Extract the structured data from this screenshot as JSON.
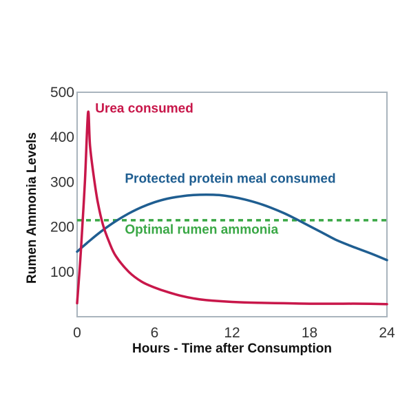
{
  "chart_data": {
    "type": "line",
    "title": "",
    "xlabel": "Hours - Time after Consumption",
    "ylabel": "Rumen Ammonia Levels",
    "xlim": [
      0,
      24
    ],
    "ylim": [
      0,
      500
    ],
    "x_ticks": [
      "0",
      "6",
      "12",
      "18",
      "24"
    ],
    "y_ticks": [
      "100",
      "200",
      "300",
      "400",
      "500"
    ],
    "grid": false,
    "legend": "inline labels",
    "series": [
      {
        "name": "Urea consumed",
        "color": "#c8174a",
        "x": [
          0,
          0.3,
          0.6,
          0.85,
          1.0,
          1.3,
          1.6,
          2.0,
          2.5,
          3.0,
          4.0,
          5.0,
          6.0,
          7.0,
          8.0,
          9.0,
          10.0,
          12.0,
          14.0,
          16.0,
          18.0,
          20.0,
          22.0,
          24.0
        ],
        "y": [
          30,
          150,
          300,
          455,
          380,
          310,
          255,
          205,
          165,
          135,
          100,
          78,
          65,
          55,
          47,
          41,
          37,
          33,
          31,
          30,
          29,
          29,
          29,
          28
        ]
      },
      {
        "name": "Protected protein meal consumed",
        "color": "#1f5e91",
        "x": [
          0,
          1,
          2,
          3,
          4,
          5,
          6,
          7,
          8,
          9,
          10,
          11,
          12,
          13,
          14,
          15,
          16,
          17,
          18,
          19,
          20,
          21,
          22,
          23,
          24
        ],
        "y": [
          145,
          170,
          193,
          213,
          230,
          244,
          255,
          263,
          268,
          271,
          272,
          271,
          267,
          261,
          253,
          243,
          231,
          217,
          202,
          187,
          172,
          160,
          149,
          138,
          126
        ]
      },
      {
        "name": "Optimal rumen ammonia",
        "color": "#3aa846",
        "style": "dashed",
        "x": [
          0,
          24
        ],
        "y": [
          215,
          215
        ]
      }
    ]
  }
}
